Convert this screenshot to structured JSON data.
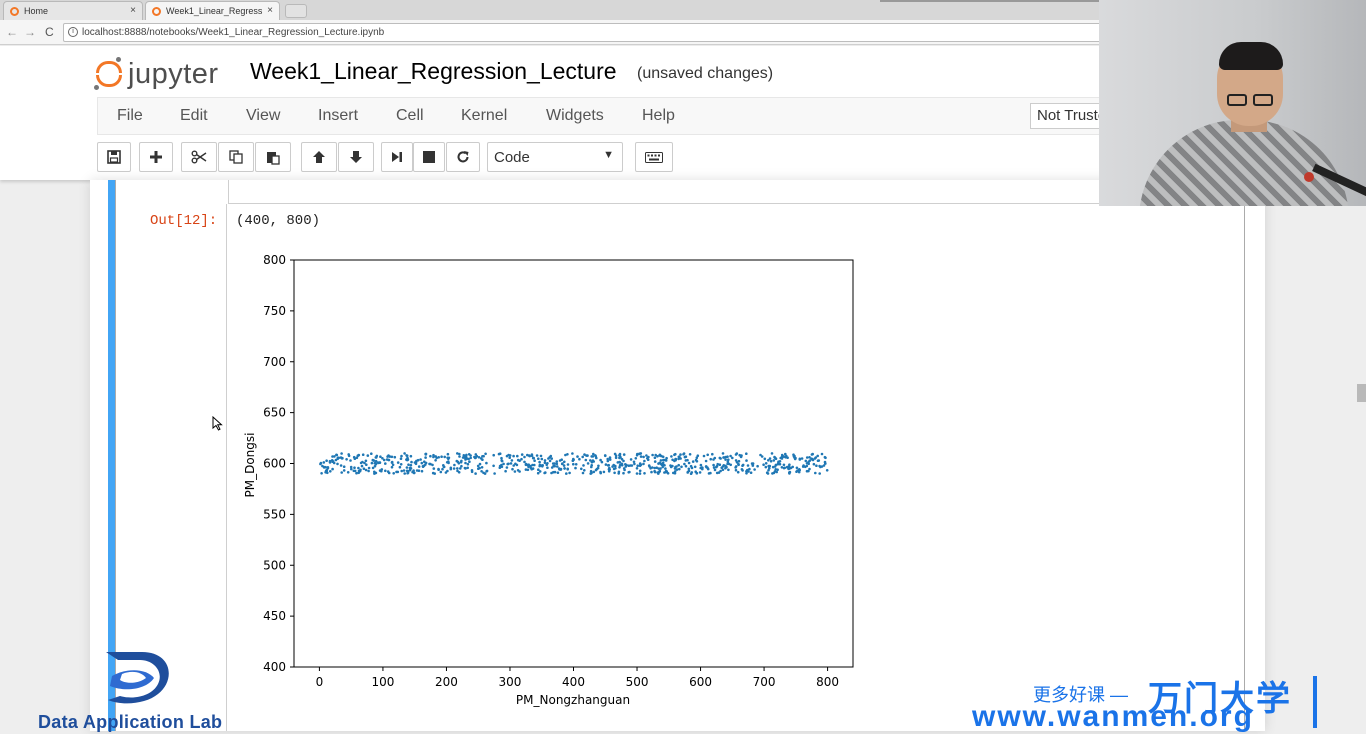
{
  "browser": {
    "tabs": [
      {
        "label": "Home",
        "close": "×"
      },
      {
        "label": "Week1_Linear_Regress",
        "close": "×"
      }
    ],
    "url": "localhost:8888/notebooks/Week1_Linear_Regression_Lecture.ipynb",
    "nav": {
      "back": "←",
      "forward": "→",
      "reload": "C"
    }
  },
  "jupyter": {
    "logo_text": "jupyter",
    "notebook_title": "Week1_Linear_Regression_Lecture",
    "save_status": "(unsaved changes)",
    "menu": [
      "File",
      "Edit",
      "View",
      "Insert",
      "Cell",
      "Kernel",
      "Widgets",
      "Help"
    ],
    "trust_label": "Not Truste",
    "cell_type": "Code",
    "cell_type_arrow": "▼"
  },
  "output": {
    "prompt": "Out[12]:",
    "text": "(400,  800)"
  },
  "chart_data": {
    "type": "scatter",
    "xlabel": "PM_Nongzhanguan",
    "ylabel": "PM_Dongsi",
    "xlim": [
      -40,
      840
    ],
    "ylim": [
      400,
      800
    ],
    "xticks": [
      "0",
      "100",
      "200",
      "300",
      "400",
      "500",
      "600",
      "700",
      "800"
    ],
    "yticks": [
      "400",
      "450",
      "500",
      "550",
      "600",
      "650",
      "700",
      "750",
      "800"
    ],
    "series": [
      {
        "x_range": [
          0,
          800
        ],
        "y_range": [
          590,
          610
        ],
        "count": 800,
        "color": "#1f77b4"
      }
    ],
    "grid": false
  },
  "watermarks": {
    "dal_text": "Data Application Lab",
    "promo": "更多好课 —",
    "brand_cn": "万门大学",
    "brand_url": "www.wanmen.org"
  }
}
